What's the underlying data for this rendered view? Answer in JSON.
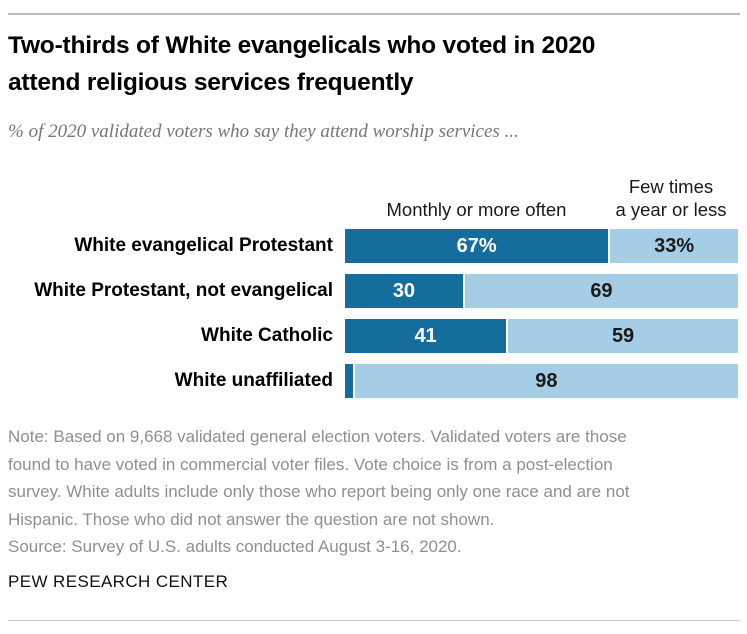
{
  "page": {
    "title_lines": [
      "Two-thirds of White evangelicals who voted in 2020",
      "attend religious services frequently"
    ],
    "subtitle": "% of 2020 validated voters who say they attend worship services ...",
    "note_lines": [
      "Note: Based on 9,668 validated general election voters. Validated voters are those",
      "found to have voted in commercial voter files. Vote choice is from a post-election",
      "survey. White adults include only those who report being only one race and are not",
      "Hispanic. Those who did not answer the question are not shown."
    ],
    "source": "Source: Survey of U.S. adults conducted August 3-16, 2020.",
    "branding": "PEW RESEARCH CENTER"
  },
  "chart_data": {
    "type": "bar",
    "orientation": "horizontal-stacked",
    "title": "Two-thirds of White evangelicals who voted in 2020 attend religious services frequently",
    "subtitle": "% of 2020 validated voters who say they attend worship services ...",
    "categories": [
      "White evangelical Protestant",
      "White Protestant, not evangelical",
      "White Catholic",
      "White unaffiliated"
    ],
    "series": [
      {
        "name": "Monthly or more often",
        "values": [
          67,
          30,
          41,
          2
        ],
        "labels": [
          "67%",
          "30",
          "41",
          ""
        ],
        "color": "#156d9d",
        "label_color": "#ffffff"
      },
      {
        "name": "Few times a year or less",
        "values": [
          33,
          69,
          59,
          98
        ],
        "labels": [
          "33%",
          "69",
          "59",
          "98"
        ],
        "color": "#a5cee6",
        "label_color": "#1a1a1a"
      }
    ],
    "header_few_lines": [
      "Few times",
      "a year or less"
    ],
    "xlim": [
      0,
      100
    ],
    "grid": false,
    "legend_position": "column-headers-above-bars"
  },
  "colors": {
    "accent_dark": "#156d9d",
    "accent_light": "#a5cee6",
    "note_gray": "#8f8f8f",
    "rule_gray": "#bdbdbd"
  }
}
